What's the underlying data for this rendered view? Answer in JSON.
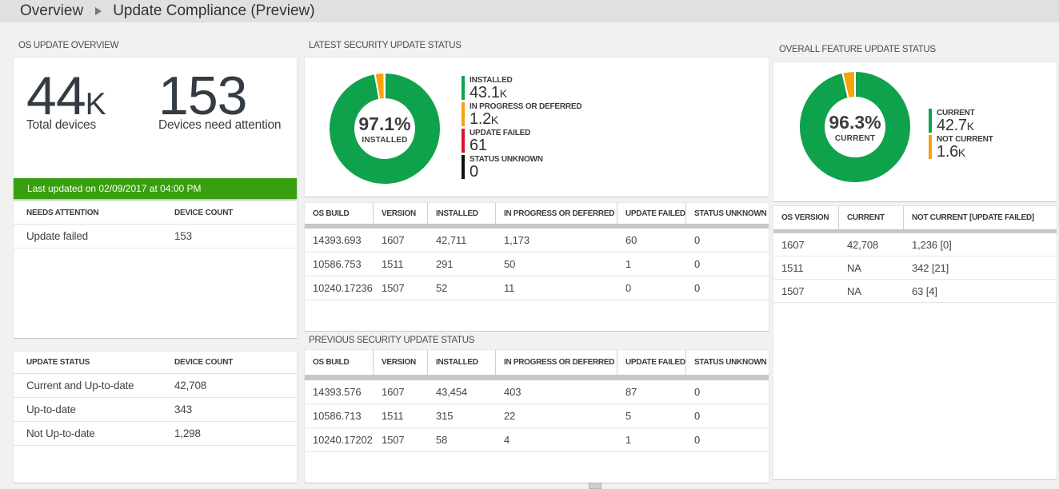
{
  "breadcrumb": {
    "items": [
      "Overview",
      "Update Compliance (Preview)"
    ]
  },
  "left_panel": {
    "title": "OS UPDATE OVERVIEW",
    "metrics": [
      {
        "value": "44",
        "suffix": "K",
        "label": "Total devices"
      },
      {
        "value": "153",
        "suffix": "",
        "label": "Devices need attention"
      }
    ],
    "last_updated": "Last updated on 02/09/2017 at 04:00 PM",
    "banner_color": "#38a010",
    "needs_attention_table": {
      "columns": [
        "NEEDS ATTENTION",
        "DEVICE COUNT"
      ],
      "rows": [
        [
          "Update failed",
          "153"
        ]
      ]
    },
    "update_status_table": {
      "columns": [
        "UPDATE STATUS",
        "DEVICE COUNT"
      ],
      "rows": [
        [
          "Current and Up-to-date",
          "42,708"
        ],
        [
          "Up-to-date",
          "343"
        ],
        [
          "Not Up-to-date",
          "1,298"
        ]
      ]
    }
  },
  "latest_panel": {
    "title": "LATEST SECURITY UPDATE STATUS",
    "table": {
      "columns": [
        "OS BUILD",
        "VERSION",
        "INSTALLED",
        "IN PROGRESS OR DEFERRED",
        "UPDATE FAILED",
        "STATUS UNKNOWN"
      ],
      "rows": [
        [
          "14393.693",
          "1607",
          "42,711",
          "1,173",
          "60",
          "0"
        ],
        [
          "10586.753",
          "1511",
          "291",
          "50",
          "1",
          "0"
        ],
        [
          "10240.17236",
          "1507",
          "52",
          "11",
          "0",
          "0"
        ]
      ]
    }
  },
  "previous_panel": {
    "title": "PREVIOUS SECURITY UPDATE STATUS",
    "table": {
      "columns": [
        "OS BUILD",
        "VERSION",
        "INSTALLED",
        "IN PROGRESS OR DEFERRED",
        "UPDATE FAILED",
        "STATUS UNKNOWN"
      ],
      "rows": [
        [
          "14393.576",
          "1607",
          "43,454",
          "403",
          "87",
          "0"
        ],
        [
          "10586.713",
          "1511",
          "315",
          "22",
          "5",
          "0"
        ],
        [
          "10240.17202",
          "1507",
          "58",
          "4",
          "1",
          "0"
        ]
      ]
    }
  },
  "feature_panel": {
    "title": "OVERALL FEATURE UPDATE STATUS",
    "table": {
      "columns": [
        "OS VERSION",
        "CURRENT",
        "NOT CURRENT [UPDATE FAILED]"
      ],
      "rows": [
        [
          "1607",
          "42,708",
          "1,236 [0]"
        ],
        [
          "1511",
          "NA",
          "342 [21]"
        ],
        [
          "1507",
          "NA",
          "63 [4]"
        ]
      ]
    }
  },
  "chart_data": [
    {
      "id": "latest-security-donut",
      "type": "donut",
      "title": "LATEST SECURITY UPDATE STATUS",
      "center": {
        "percent": "97.1%",
        "label": "INSTALLED"
      },
      "slices": [
        {
          "label": "INSTALLED",
          "value": 43100,
          "display": "43.1",
          "suffix": "K",
          "color": "#0fa24c"
        },
        {
          "label": "IN PROGRESS OR DEFERRED",
          "value": 1200,
          "display": "1.2",
          "suffix": "K",
          "color": "#f8a20d"
        },
        {
          "label": "UPDATE FAILED",
          "value": 61,
          "display": "61",
          "suffix": "",
          "color": "#d8142e"
        },
        {
          "label": "STATUS UNKNOWN",
          "value": 0,
          "display": "0",
          "suffix": "",
          "color": "#101010"
        }
      ],
      "legend_position": "right"
    },
    {
      "id": "overall-feature-donut",
      "type": "donut",
      "title": "OVERALL FEATURE UPDATE STATUS",
      "center": {
        "percent": "96.3%",
        "label": "CURRENT"
      },
      "slices": [
        {
          "label": "CURRENT",
          "value": 42700,
          "display": "42.7",
          "suffix": "K",
          "color": "#0fa24c"
        },
        {
          "label": "NOT CURRENT",
          "value": 1600,
          "display": "1.6",
          "suffix": "K",
          "color": "#f8a20d"
        }
      ],
      "legend_position": "right"
    }
  ]
}
